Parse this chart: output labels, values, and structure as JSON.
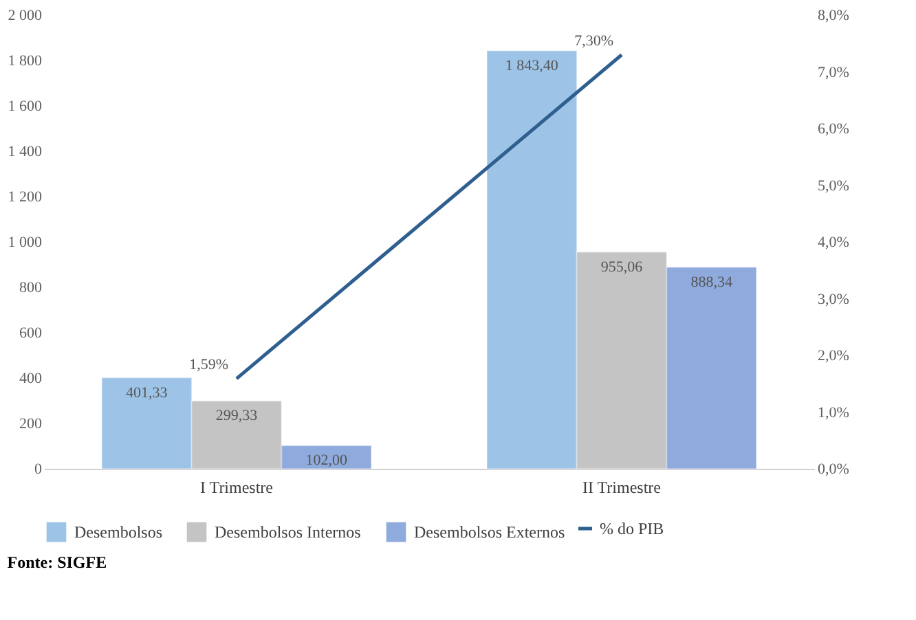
{
  "chart_data": {
    "type": "bar",
    "categories": [
      "I Trimestre",
      "II Trimestre"
    ],
    "series": [
      {
        "name": "Desembolsos",
        "type": "bar",
        "color": "#9dc3e6",
        "values": [
          401.33,
          1843.4
        ],
        "value_labels": [
          "401,33",
          "1 843,40"
        ]
      },
      {
        "name": "Desembolsos Internos",
        "type": "bar",
        "color": "#c4c4c4",
        "values": [
          299.33,
          955.06
        ],
        "value_labels": [
          "299,33",
          "955,06"
        ]
      },
      {
        "name": "Desembolsos Externos",
        "type": "bar",
        "color": "#8faadc",
        "values": [
          102.0,
          888.34
        ],
        "value_labels": [
          "102,00",
          "888,34"
        ]
      },
      {
        "name": "% do PIB",
        "type": "line",
        "axis": "y2",
        "line_style": "solid",
        "color": "#2f5f8f",
        "values": [
          1.59,
          7.3
        ],
        "value_labels": [
          "1,59%",
          "7,30%"
        ]
      }
    ],
    "ylim": [
      0,
      2000
    ],
    "yticks": [
      0,
      200,
      400,
      600,
      800,
      {
        "value": 1000,
        "label": "1 000"
      },
      {
        "value": 1200,
        "label": "1 200"
      },
      {
        "value": 1400,
        "label": "1 400"
      },
      {
        "value": 1600,
        "label": "1 600"
      },
      {
        "value": 1800,
        "label": "1 800"
      },
      {
        "value": 2000,
        "label": "2 000"
      }
    ],
    "y2lim": [
      0,
      8
    ],
    "y2ticks": [
      {
        "value": 0,
        "label": "0,0%"
      },
      {
        "value": 1,
        "label": "1,0%"
      },
      {
        "value": 2,
        "label": "2,0%"
      },
      {
        "value": 3,
        "label": "3,0%"
      },
      {
        "value": 4,
        "label": "4,0%"
      },
      {
        "value": 5,
        "label": "5,0%"
      },
      {
        "value": 6,
        "label": "6,0%"
      },
      {
        "value": 7,
        "label": "7,0%"
      },
      {
        "value": 8,
        "label": "8,0%"
      }
    ],
    "grid": false,
    "legend": "bottom",
    "annotations": [
      "Fonte: SIGFE"
    ]
  }
}
